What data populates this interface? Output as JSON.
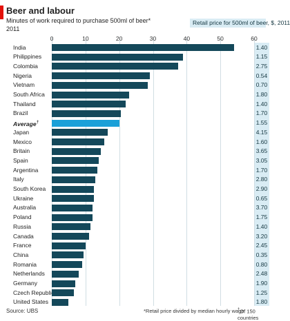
{
  "header": {
    "title": "Beer and labour",
    "subtitle": "Minutes of work required to purchase 500ml of beer*",
    "year": "2011",
    "right_header": "Retail price for 500ml of beer, $, 2011"
  },
  "footnotes": {
    "source": "Source: UBS",
    "note": "*Retail price divided by median hourly wage",
    "note2": "Of 150 countries",
    "dagger": "†"
  },
  "colors": {
    "bar": "#14485a",
    "average_bar": "#1aa0d8",
    "accent_red": "#e3120b",
    "price_panel": "#d9ecf4",
    "grid": "#d0dde3"
  },
  "chart_data": {
    "type": "bar",
    "orientation": "horizontal",
    "title": "Beer and labour",
    "xlim": [
      0,
      60
    ],
    "xticks": [
      "0",
      "10",
      "20",
      "30",
      "40",
      "50",
      "60"
    ],
    "categories": [
      "India",
      "Philippines",
      "Colombia",
      "Nigeria",
      "Vietnam",
      "South Africa",
      "Thailand",
      "Brazil",
      "Average",
      "Japan",
      "Mexico",
      "Britain",
      "Spain",
      "Argentina",
      "Italy",
      "South Korea",
      "Ukraine",
      "Australia",
      "Poland",
      "Russia",
      "Canada",
      "France",
      "China",
      "Romania",
      "Netherlands",
      "Germany",
      "Czech Republic",
      "United States"
    ],
    "values": [
      54,
      39,
      37.5,
      29,
      28.5,
      23,
      22,
      20.5,
      20,
      16.5,
      15.5,
      14.5,
      14,
      13.5,
      13,
      12.5,
      12.5,
      12,
      12,
      11.5,
      11,
      10,
      9.5,
      9,
      8,
      7,
      6.5,
      5
    ],
    "prices": [
      "1.40",
      "1.15",
      "2.75",
      "0.54",
      "0.70",
      "1.80",
      "1.40",
      "1.70",
      "1.55",
      "4.15",
      "1.60",
      "3.65",
      "3.05",
      "1.70",
      "2.80",
      "2.90",
      "0.65",
      "3.70",
      "1.75",
      "1.40",
      "3.20",
      "2.45",
      "0.35",
      "0.80",
      "2.48",
      "1.90",
      "1.25",
      "1.80"
    ],
    "highlight_index": 8
  }
}
